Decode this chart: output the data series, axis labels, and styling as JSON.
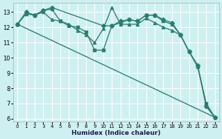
{
  "xlabel": "Humidex (Indice chaleur)",
  "bg_color": "#cff0f0",
  "grid_color": "#ffffff",
  "line_color": "#2d7d70",
  "xlim": [
    -0.5,
    23.5
  ],
  "ylim": [
    5.8,
    13.6
  ],
  "yticks": [
    6,
    7,
    8,
    9,
    10,
    11,
    12,
    13
  ],
  "xticks": [
    0,
    1,
    2,
    3,
    4,
    5,
    6,
    7,
    8,
    9,
    10,
    11,
    12,
    13,
    14,
    15,
    16,
    17,
    18,
    19,
    20,
    21,
    22,
    23
  ],
  "lines": [
    {
      "x": [
        0,
        1,
        2,
        3,
        4,
        10,
        11,
        12,
        13,
        14,
        15,
        16,
        17,
        18,
        19,
        20,
        21,
        22,
        23
      ],
      "y": [
        12.2,
        13.0,
        12.8,
        13.1,
        13.3,
        12.1,
        12.1,
        12.4,
        12.5,
        12.4,
        12.8,
        12.8,
        12.5,
        12.3,
        11.5,
        10.4,
        9.5,
        6.8,
        6.1
      ],
      "markersize": 3,
      "linewidth": 1.0
    },
    {
      "x": [
        0,
        1,
        2,
        3,
        4,
        5,
        6,
        7,
        8,
        9,
        10,
        11,
        12,
        13,
        14,
        15,
        16,
        17,
        18,
        19,
        20,
        21,
        22,
        23
      ],
      "y": [
        12.2,
        12.9,
        12.8,
        13.0,
        12.5,
        12.4,
        12.2,
        11.8,
        11.5,
        11.0,
        11.9,
        13.3,
        12.2,
        12.2,
        12.2,
        12.6,
        12.3,
        12.0,
        11.8,
        11.5,
        10.4,
        9.5,
        6.9,
        6.1
      ],
      "markersize": 3,
      "linewidth": 1.0
    },
    {
      "x": [
        0,
        1,
        2,
        3,
        4,
        5,
        6,
        7,
        8,
        9,
        10,
        11,
        12,
        13,
        14,
        15,
        16,
        17,
        18,
        19,
        20,
        21,
        22,
        23
      ],
      "y": [
        12.2,
        12.9,
        12.8,
        13.1,
        13.2,
        12.4,
        12.1,
        12.0,
        11.7,
        10.5,
        10.5,
        12.1,
        12.3,
        12.5,
        12.4,
        12.8,
        12.8,
        12.4,
        12.2,
        11.5,
        10.4,
        9.4,
        7.0,
        6.1
      ],
      "markersize": 3,
      "linewidth": 1.0
    },
    {
      "x": [
        0,
        23
      ],
      "y": [
        12.2,
        6.1
      ],
      "markersize": 3,
      "linewidth": 1.0
    }
  ]
}
